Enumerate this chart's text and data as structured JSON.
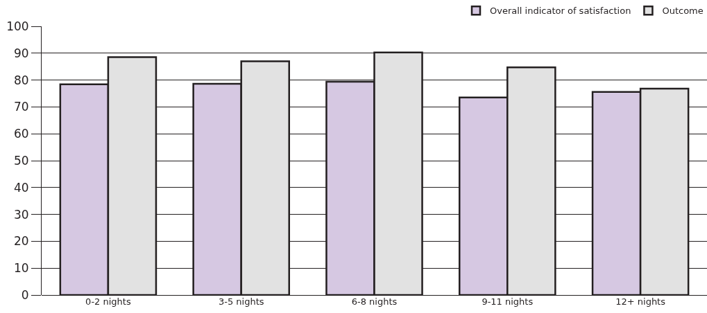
{
  "chart_data": {
    "type": "bar",
    "categories": [
      "0-2 nights",
      "3-5 nights",
      "6-8 nights",
      "9-11 nights",
      "12+ nights"
    ],
    "series": [
      {
        "name": "Overall indicator of satisfaction",
        "color": "#d6c8e2",
        "values": [
          78.4,
          78.6,
          79.4,
          73.5,
          75.6
        ]
      },
      {
        "name": "Outcome",
        "color": "#e2e2e2",
        "values": [
          88.5,
          87,
          90.3,
          84.7,
          76.8
        ]
      }
    ],
    "ylim": [
      0,
      100
    ],
    "yticks": [
      0,
      10,
      20,
      30,
      40,
      50,
      60,
      70,
      80,
      90,
      100
    ],
    "grid": "y",
    "legend": "top right"
  }
}
